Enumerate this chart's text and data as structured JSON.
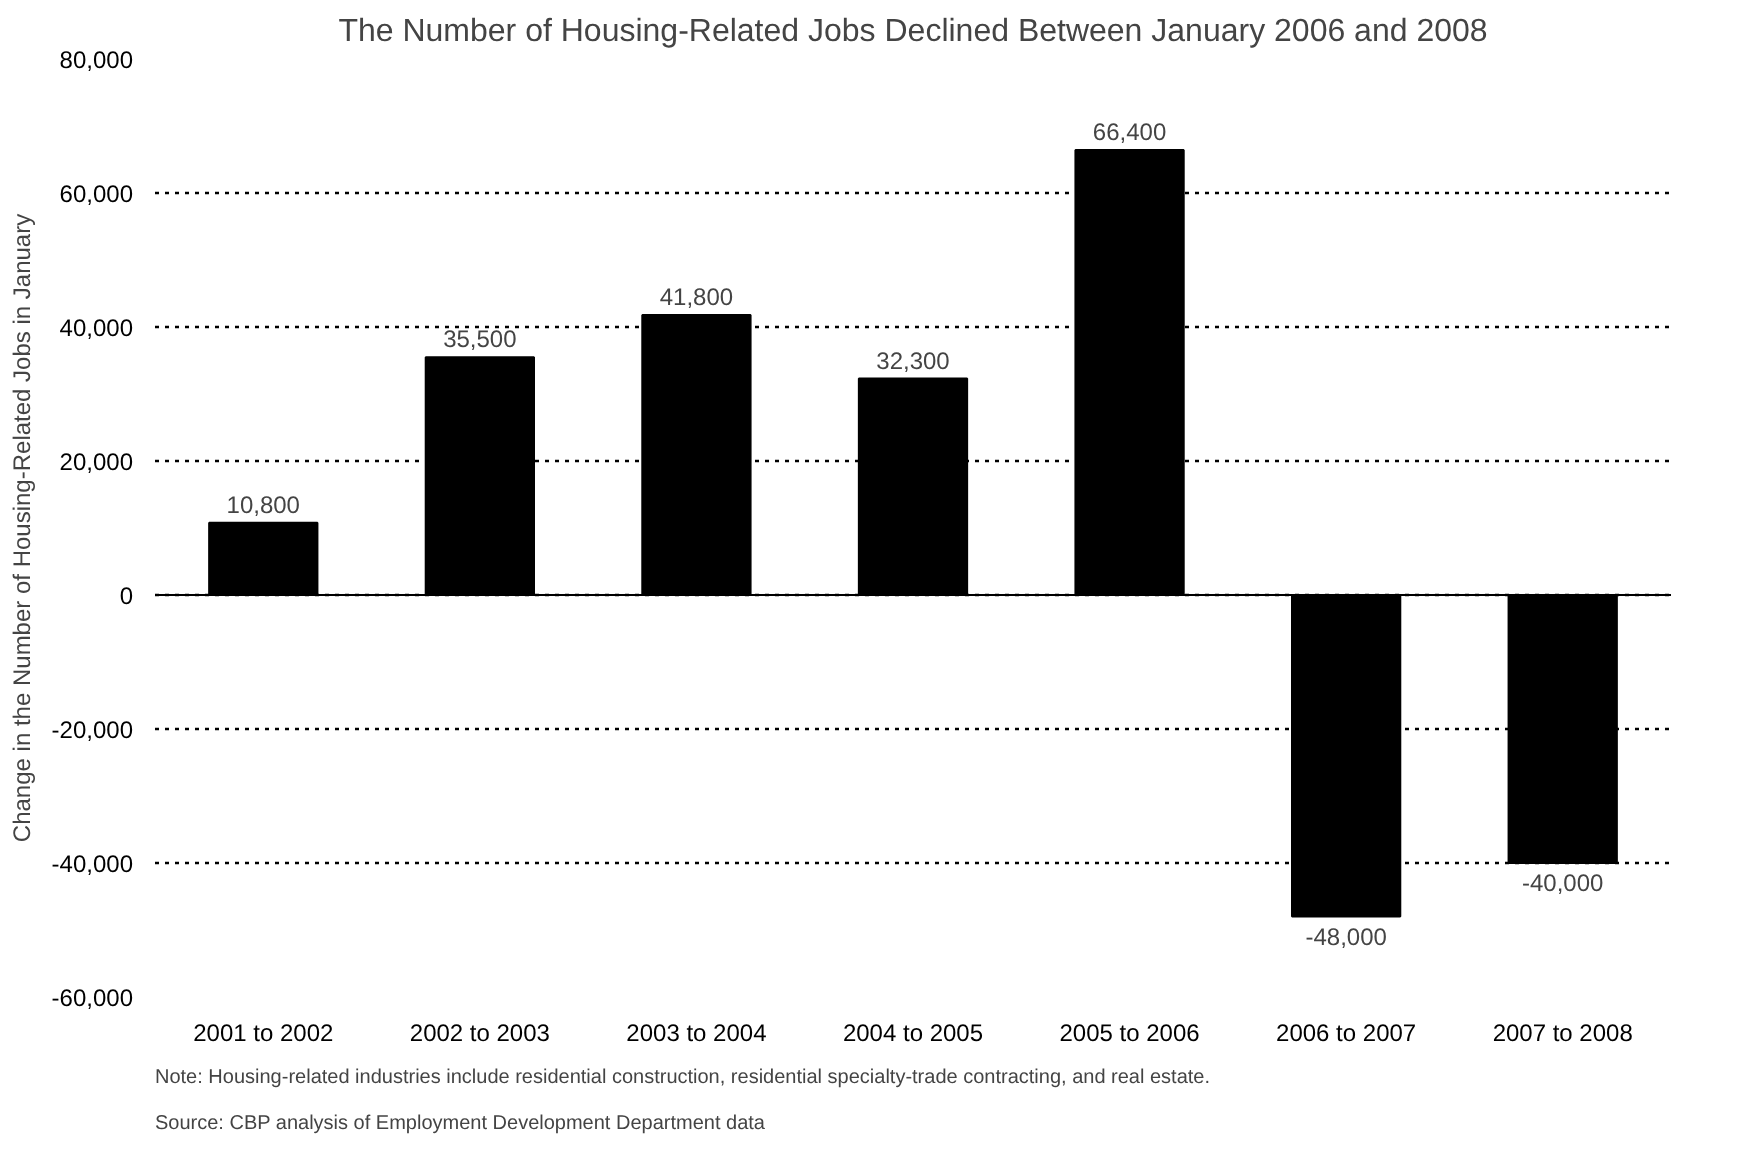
{
  "chart_data": {
    "type": "bar",
    "title": "The Number of Housing-Related Jobs Declined Between January 2006 and 2008",
    "ylabel": "Change in the Number of Housing-Related Jobs in January",
    "categories": [
      "2001 to 2002",
      "2002 to 2003",
      "2003 to 2004",
      "2004 to 2005",
      "2005 to 2006",
      "2006 to 2007",
      "2007 to 2008"
    ],
    "values": [
      10800,
      35500,
      41800,
      32300,
      66400,
      -48000,
      -40000
    ],
    "value_labels": [
      "10,800",
      "35,500",
      "41,800",
      "32,300",
      "66,400",
      "-48,000",
      "-40,000"
    ],
    "color": "#000000",
    "ylim": [
      -60000,
      80000
    ],
    "yticks": [
      {
        "value": -60000,
        "label": "-60,000"
      },
      {
        "value": -40000,
        "label": "-40,000"
      },
      {
        "value": -20000,
        "label": "-20,000"
      },
      {
        "value": 0,
        "label": "0"
      },
      {
        "value": 20000,
        "label": "20,000"
      },
      {
        "value": 40000,
        "label": "40,000"
      },
      {
        "value": 60000,
        "label": "60,000"
      },
      {
        "value": 80000,
        "label": "80,000"
      }
    ],
    "grid": "y",
    "annotations": [
      "Note: Housing-related industries include residential construction, residential specialty-trade contracting, and real estate.",
      "Source: CBP analysis of Employment Development Department data"
    ]
  }
}
